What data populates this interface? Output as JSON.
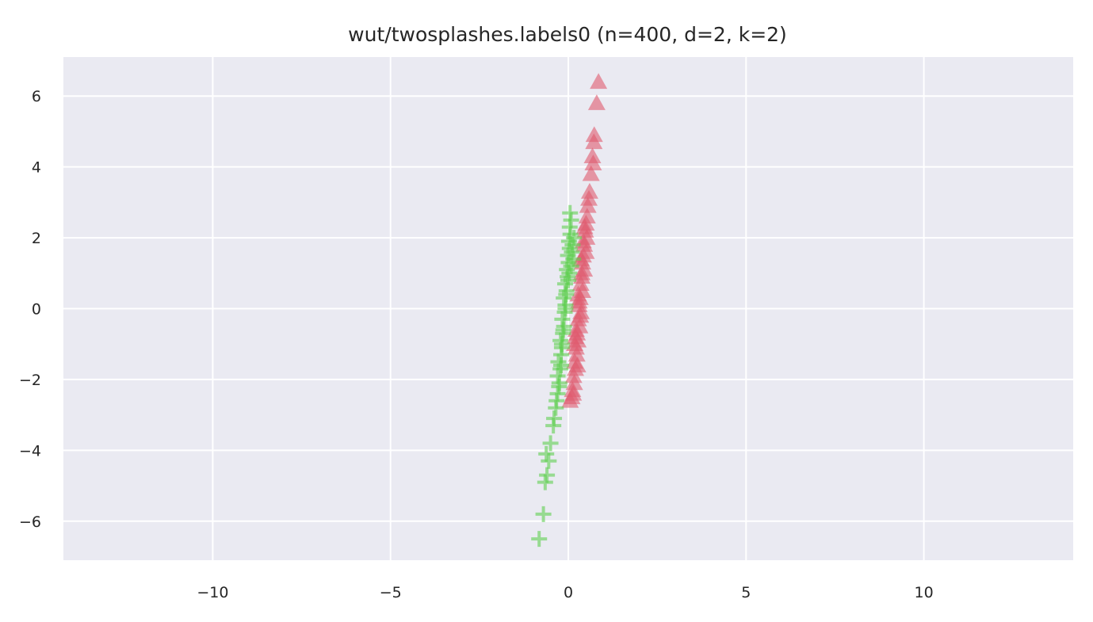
{
  "chart_data": {
    "type": "scatter",
    "title": "wut/twosplashes.labels0 (n=400, d=2, k=2)",
    "xlabel": "",
    "ylabel": "",
    "xlim": [
      -14.2,
      14.2
    ],
    "ylim": [
      -7.1,
      7.1
    ],
    "xticks": [
      -10,
      -5,
      0,
      5,
      10
    ],
    "yticks": [
      -6,
      -4,
      -2,
      0,
      2,
      4,
      6
    ],
    "xtick_labels": [
      "−10",
      "−5",
      "0",
      "5",
      "10"
    ],
    "ytick_labels": [
      "−6",
      "−4",
      "−2",
      "0",
      "2",
      "4",
      "6"
    ],
    "grid": true,
    "legend": "none",
    "colors": {
      "background": "#eaeaf2",
      "grid": "#ffffff",
      "series_triangles": "#e05a6e",
      "series_plus": "#5fcf50"
    },
    "series": [
      {
        "marker": "triangle",
        "color": "#e05a6e",
        "points": [
          [
            0.85,
            6.4
          ],
          [
            0.8,
            5.8
          ],
          [
            0.73,
            4.9
          ],
          [
            0.72,
            4.7
          ],
          [
            0.68,
            4.3
          ],
          [
            0.7,
            4.1
          ],
          [
            0.64,
            3.8
          ],
          [
            0.6,
            3.3
          ],
          [
            0.58,
            3.1
          ],
          [
            0.55,
            2.9
          ],
          [
            0.53,
            2.6
          ],
          [
            0.5,
            2.4
          ],
          [
            0.48,
            2.2
          ],
          [
            0.52,
            2.0
          ],
          [
            0.45,
            1.8
          ],
          [
            0.5,
            1.6
          ],
          [
            0.42,
            1.5
          ],
          [
            0.4,
            1.3
          ],
          [
            0.45,
            1.1
          ],
          [
            0.38,
            0.9
          ],
          [
            0.35,
            0.7
          ],
          [
            0.4,
            0.5
          ],
          [
            0.33,
            0.3
          ],
          [
            0.3,
            0.1
          ],
          [
            0.36,
            -0.1
          ],
          [
            0.28,
            -0.3
          ],
          [
            0.32,
            -0.5
          ],
          [
            0.25,
            -0.7
          ],
          [
            0.27,
            -0.9
          ],
          [
            0.22,
            -1.1
          ],
          [
            0.24,
            -1.3
          ],
          [
            0.18,
            -1.5
          ],
          [
            0.2,
            -1.7
          ],
          [
            0.15,
            -1.9
          ],
          [
            0.17,
            -2.1
          ],
          [
            0.12,
            -2.3
          ],
          [
            0.1,
            -2.5
          ],
          [
            0.05,
            -2.6
          ],
          [
            0.14,
            -2.4
          ],
          [
            0.3,
            0.2
          ],
          [
            0.22,
            -0.6
          ],
          [
            0.38,
            1.0
          ],
          [
            0.28,
            0.4
          ],
          [
            0.18,
            -1.0
          ],
          [
            0.42,
            1.9
          ],
          [
            0.34,
            -0.2
          ],
          [
            0.26,
            -1.6
          ],
          [
            0.46,
            2.3
          ],
          [
            0.2,
            -0.8
          ],
          [
            0.36,
            1.4
          ]
        ]
      },
      {
        "marker": "plus",
        "color": "#5fcf50",
        "points": [
          [
            -0.82,
            -6.5
          ],
          [
            -0.7,
            -5.8
          ],
          [
            -0.65,
            -4.9
          ],
          [
            -0.6,
            -4.7
          ],
          [
            -0.55,
            -4.3
          ],
          [
            -0.62,
            -4.1
          ],
          [
            -0.5,
            -3.8
          ],
          [
            -0.42,
            -3.3
          ],
          [
            -0.4,
            -3.1
          ],
          [
            -0.35,
            -2.8
          ],
          [
            -0.33,
            -2.6
          ],
          [
            -0.3,
            -2.4
          ],
          [
            -0.25,
            -2.1
          ],
          [
            -0.3,
            -1.9
          ],
          [
            -0.22,
            -1.7
          ],
          [
            -0.28,
            -1.5
          ],
          [
            -0.2,
            -1.3
          ],
          [
            -0.18,
            -1.1
          ],
          [
            -0.22,
            -0.9
          ],
          [
            -0.15,
            -0.7
          ],
          [
            -0.12,
            -0.5
          ],
          [
            -0.17,
            -0.3
          ],
          [
            -0.1,
            -0.1
          ],
          [
            -0.08,
            0.1
          ],
          [
            -0.13,
            0.3
          ],
          [
            -0.05,
            0.5
          ],
          [
            -0.09,
            0.7
          ],
          [
            -0.02,
            0.9
          ],
          [
            -0.04,
            1.1
          ],
          [
            0.01,
            1.3
          ],
          [
            -0.01,
            1.5
          ],
          [
            0.04,
            1.7
          ],
          [
            0.02,
            1.9
          ],
          [
            0.06,
            2.1
          ],
          [
            0.04,
            2.3
          ],
          [
            0.08,
            2.5
          ],
          [
            0.05,
            2.7
          ],
          [
            0.1,
            1.6
          ],
          [
            -0.06,
            0.4
          ],
          [
            0.08,
            1.2
          ],
          [
            -0.14,
            -0.6
          ],
          [
            0.12,
            1.8
          ],
          [
            -0.2,
            -1.6
          ],
          [
            0.0,
            0.8
          ],
          [
            -0.26,
            -2.2
          ],
          [
            0.14,
            1.4
          ],
          [
            -0.08,
            0.0
          ],
          [
            0.16,
            2.0
          ],
          [
            -0.18,
            -1.0
          ],
          [
            0.03,
            1.0
          ]
        ]
      }
    ]
  }
}
